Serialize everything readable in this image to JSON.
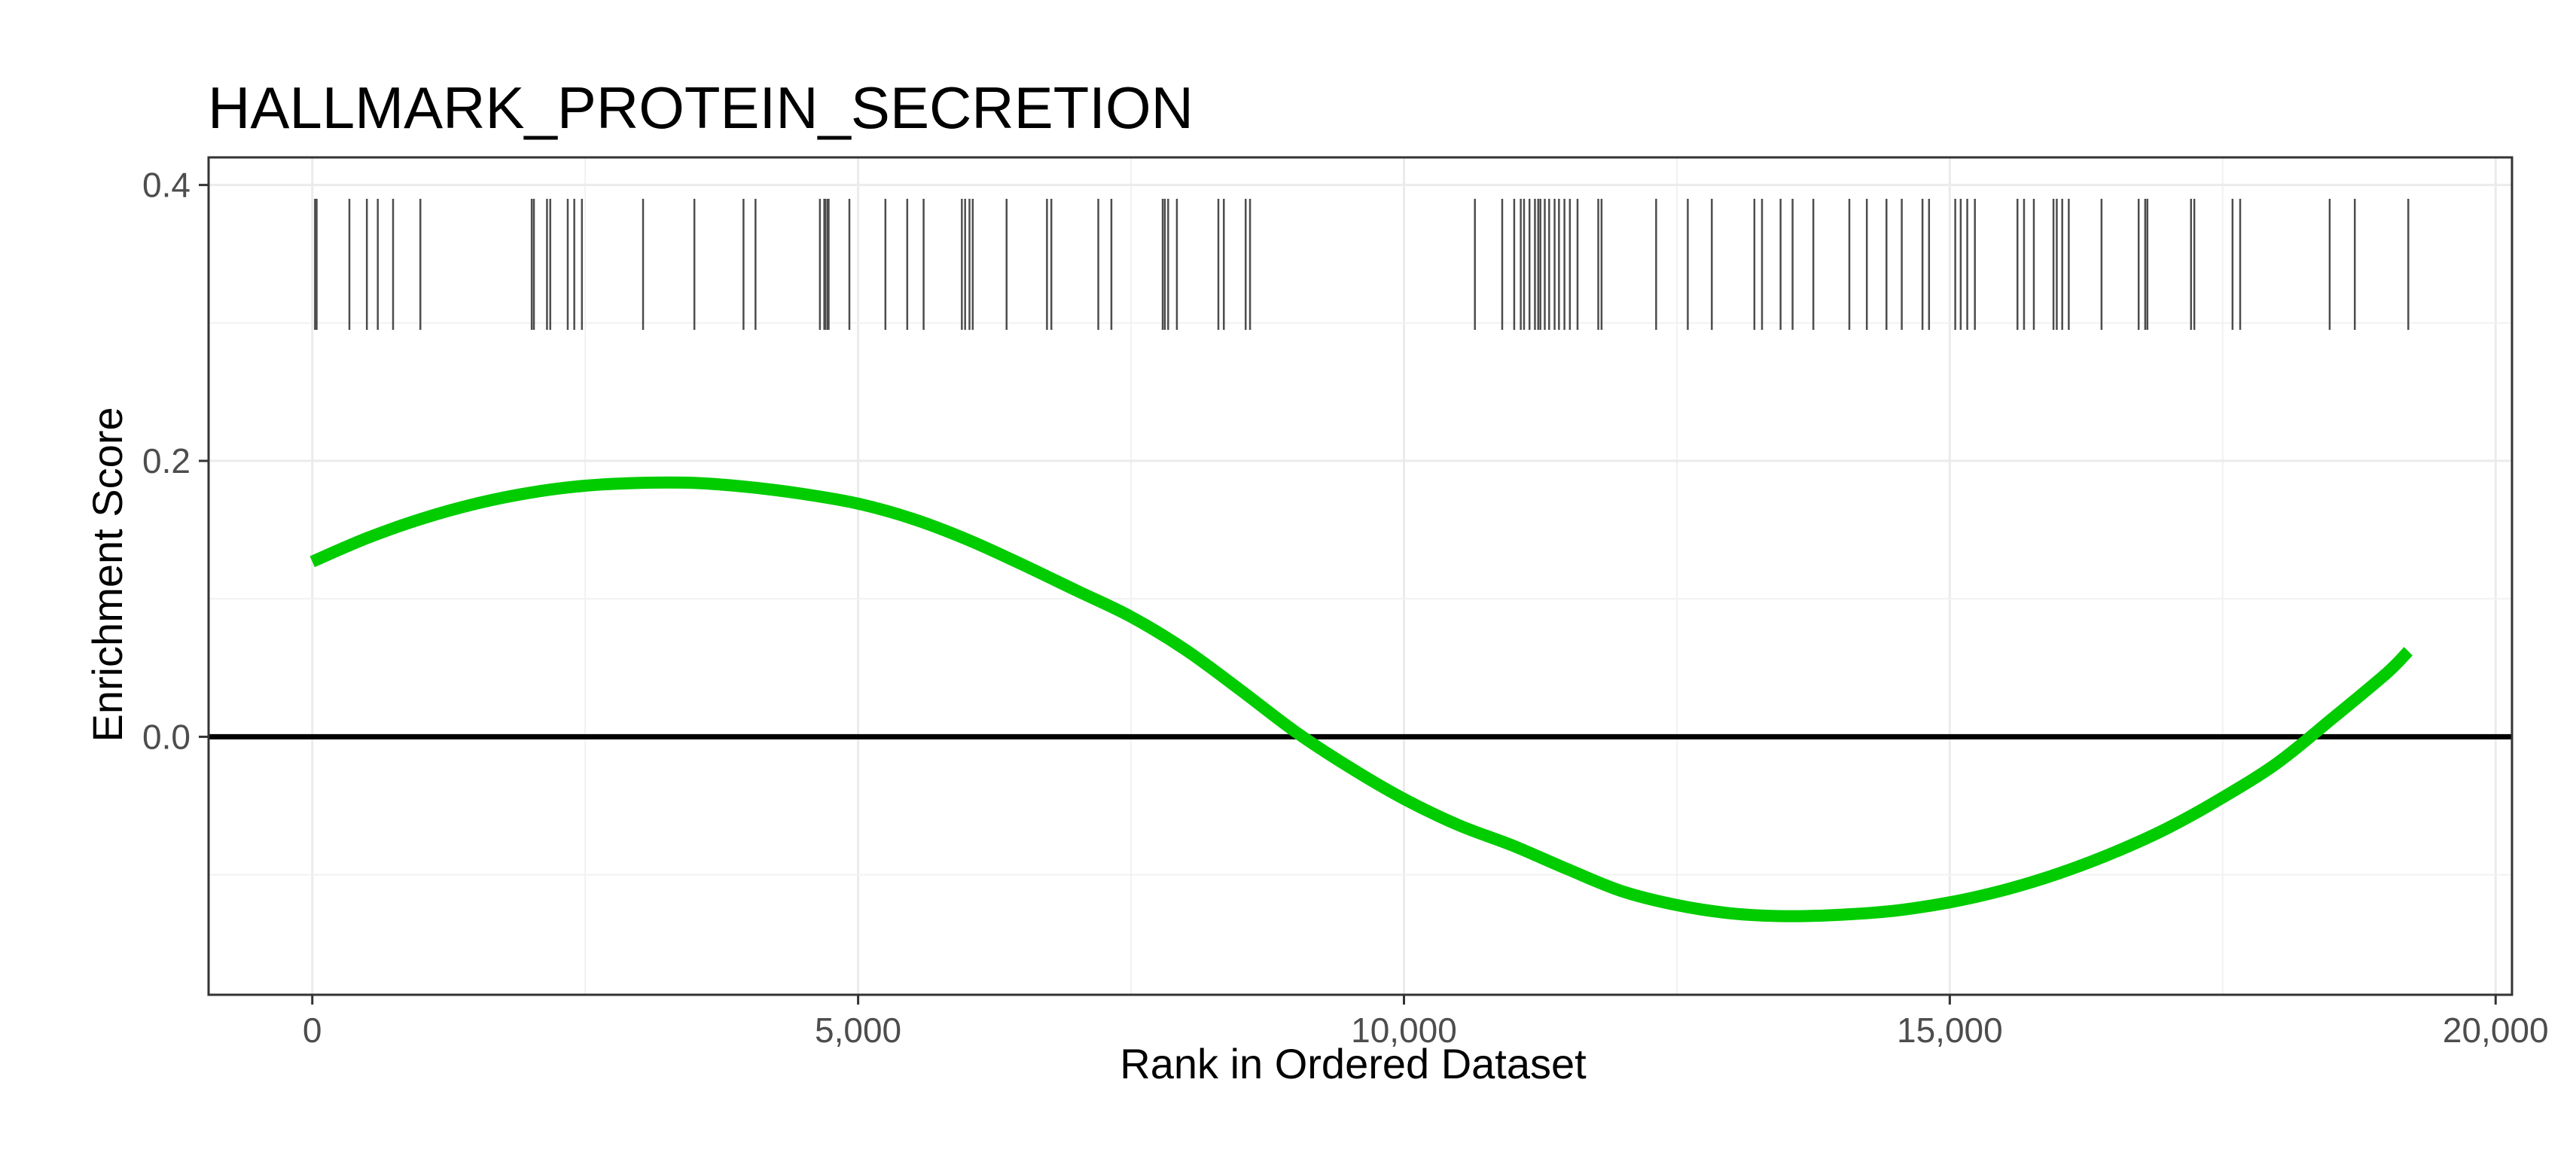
{
  "chart_data": {
    "type": "line",
    "title": "HALLMARK_PROTEIN_SECRETION",
    "xlabel": "Rank in Ordered Dataset",
    "ylabel": "Enrichment Score",
    "xlim": [
      -950,
      20150
    ],
    "ylim": [
      -0.187,
      0.42
    ],
    "x_ticks": [
      0,
      5000,
      10000,
      15000,
      20000
    ],
    "x_tick_labels": [
      "0",
      "5,000",
      "10,000",
      "15,000",
      "20,000"
    ],
    "y_ticks": [
      0.0,
      0.2,
      0.4
    ],
    "y_tick_labels": [
      "0.0",
      "0.2",
      "0.4"
    ],
    "grid": true,
    "zero_line": 0,
    "series": [
      {
        "color": "#00cc00",
        "x": [
          0,
          500,
          1000,
          1500,
          2000,
          2500,
          3000,
          3500,
          4000,
          4500,
          5000,
          5500,
          6000,
          6500,
          7000,
          7500,
          8000,
          8500,
          9000,
          9500,
          10000,
          10500,
          11000,
          11500,
          12000,
          12500,
          13000,
          13500,
          14000,
          14500,
          15000,
          15500,
          16000,
          16500,
          17000,
          17500,
          18000,
          18500,
          19000,
          19200
        ],
        "y": [
          0.127,
          0.144,
          0.158,
          0.169,
          0.177,
          0.182,
          0.184,
          0.184,
          0.181,
          0.176,
          0.169,
          0.158,
          0.143,
          0.125,
          0.106,
          0.087,
          0.063,
          0.034,
          0.004,
          -0.022,
          -0.045,
          -0.064,
          -0.079,
          -0.096,
          -0.112,
          -0.122,
          -0.128,
          -0.13,
          -0.129,
          -0.126,
          -0.12,
          -0.111,
          -0.099,
          -0.084,
          -0.066,
          -0.044,
          -0.019,
          0.013,
          0.046,
          0.062
        ]
      }
    ],
    "gene_hits": [
      25,
      40,
      340,
      500,
      600,
      740,
      990,
      2010,
      2030,
      2150,
      2180,
      2340,
      2400,
      2470,
      3030,
      3500,
      3950,
      4060,
      4650,
      4690,
      4700,
      4720,
      4730,
      4920,
      5250,
      5450,
      5600,
      5950,
      5980,
      6020,
      6050,
      6360,
      6730,
      6770,
      7200,
      7320,
      7790,
      7810,
      7840,
      7920,
      8300,
      8350,
      8550,
      8590,
      10650,
      10900,
      11010,
      11070,
      11100,
      11150,
      11200,
      11230,
      11250,
      11290,
      11330,
      11380,
      11420,
      11470,
      11520,
      11590,
      11780,
      11810,
      12310,
      12600,
      12820,
      13210,
      13280,
      13450,
      13560,
      13750,
      14080,
      14240,
      14420,
      14560,
      14750,
      14810,
      15050,
      15100,
      15160,
      15230,
      15620,
      15680,
      15770,
      15950,
      15980,
      16030,
      16090,
      16390,
      16730,
      16790,
      16810,
      17210,
      17240,
      17590,
      17660,
      18480,
      18710,
      19200
    ]
  }
}
